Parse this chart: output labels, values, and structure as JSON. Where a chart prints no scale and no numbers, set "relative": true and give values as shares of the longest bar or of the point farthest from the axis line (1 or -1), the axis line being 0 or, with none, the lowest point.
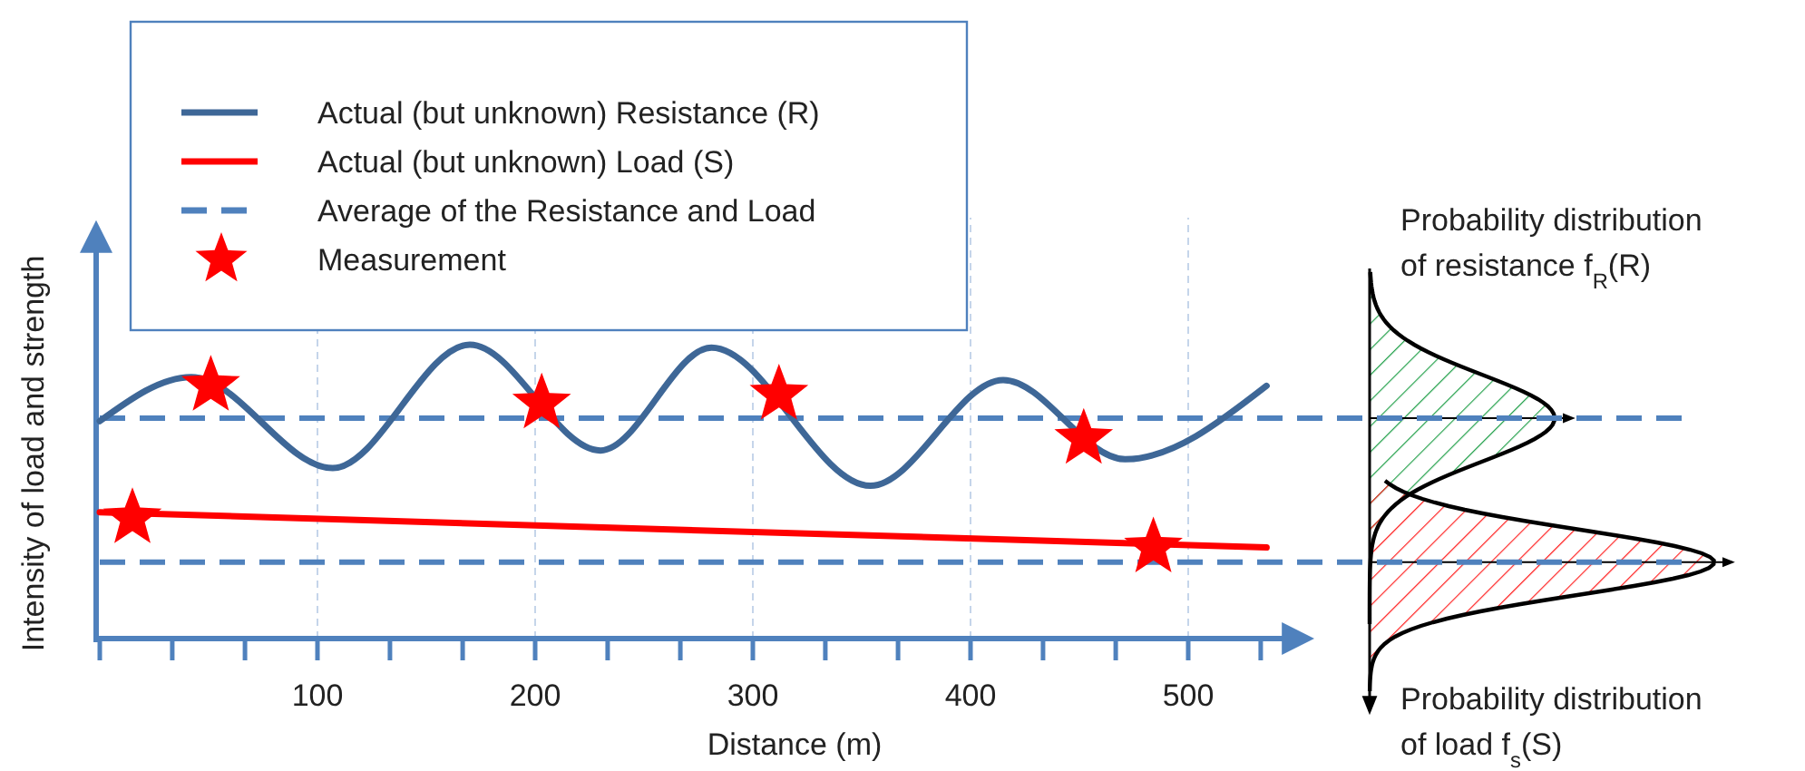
{
  "chart_data": {
    "type": "line",
    "relative": true,
    "xlabel": "Distance (m)",
    "ylabel": "Intensity of load and strength",
    "xlim": [
      0,
      555
    ],
    "xticks": [
      {
        "value": 0,
        "label": null
      },
      {
        "value": 33.3,
        "label": null
      },
      {
        "value": 66.7,
        "label": null
      },
      100,
      {
        "value": 133.3,
        "label": null
      },
      {
        "value": 166.7,
        "label": null
      },
      200,
      {
        "value": 233.3,
        "label": null
      },
      {
        "value": 266.7,
        "label": null
      },
      300,
      {
        "value": 333.3,
        "label": null
      },
      {
        "value": 366.7,
        "label": null
      },
      400,
      {
        "value": 433.3,
        "label": null
      },
      {
        "value": 466.7,
        "label": null
      },
      500,
      {
        "value": 533.3,
        "label": null
      }
    ],
    "grid": "x",
    "legend": "top left",
    "series": [
      {
        "name": "Actual (but unknown) Resistance (R)",
        "type": "line",
        "color": "#3e6797",
        "marker": "none",
        "line_style": "solid",
        "x": [
          0,
          42,
          107,
          170,
          230,
          281,
          354,
          415,
          471,
          536
        ],
        "values": [
          0.74,
          0.89,
          0.58,
          1,
          0.64,
          0.99,
          0.52,
          0.88,
          0.61,
          0.86
        ]
      },
      {
        "name": "Actual (but unknown) Load (S)",
        "type": "line",
        "color": "#ff0000",
        "marker": "none",
        "line_style": "solid",
        "x": [
          0,
          536
        ],
        "values": [
          0.43,
          0.31
        ]
      },
      {
        "name": "Measurement",
        "type": "scatter",
        "color": "#ff0000",
        "marker": "star",
        "x": [
          15,
          51,
          203,
          312,
          452,
          484
        ],
        "values": [
          0.41,
          0.86,
          0.8,
          0.83,
          0.68,
          0.31
        ]
      }
    ],
    "ref_lines": [
      {
        "axis": "y",
        "value": 0.75,
        "label": "Average of the Resistance and Load",
        "color": "#4f81bd",
        "line_style": "dashed"
      },
      {
        "axis": "y",
        "value": 0.26,
        "color": "#4f81bd",
        "line_style": "dashed"
      }
    ],
    "annotations": [
      "Probability  distribution of resistance f$_{R}$(R)",
      "Probability distribution of load f$_{s}$(S)"
    ]
  }
}
